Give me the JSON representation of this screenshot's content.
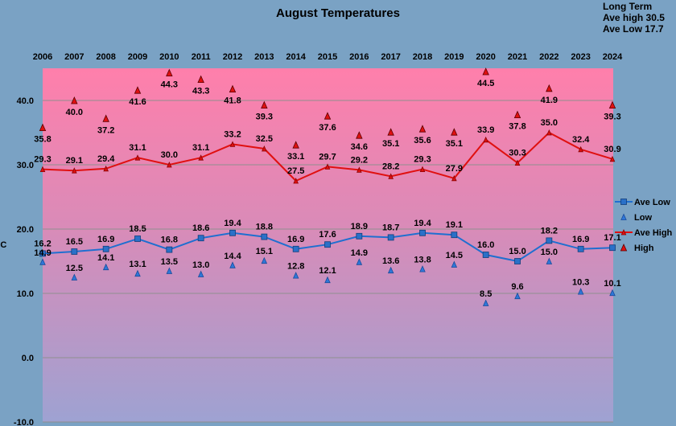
{
  "chart_data": {
    "type": "line",
    "title": "August Temperatures",
    "ylabel": "°C",
    "ylim": [
      -10,
      45
    ],
    "yticks": [
      "-10.0",
      "0.0",
      "10.0",
      "20.0",
      "30.0",
      "40.0"
    ],
    "grid": true,
    "legend_position": "right",
    "categories": [
      "2006",
      "2007",
      "2008",
      "2009",
      "2010",
      "2011",
      "2012",
      "2013",
      "2014",
      "2015",
      "2016",
      "2017",
      "2018",
      "2019",
      "2020",
      "2021",
      "2022",
      "2023",
      "2024"
    ],
    "series": [
      {
        "name": "Ave Low",
        "marker": "square",
        "line": true,
        "color": "#1f6fd0",
        "values": [
          16.2,
          16.5,
          16.9,
          18.5,
          16.8,
          18.6,
          19.4,
          18.8,
          16.9,
          17.6,
          18.9,
          18.7,
          19.4,
          19.1,
          16.0,
          15.0,
          18.2,
          16.9,
          17.1
        ]
      },
      {
        "name": "Low",
        "marker": "triangle",
        "line": false,
        "color": "#2a6fd6",
        "values": [
          14.9,
          12.5,
          14.1,
          13.1,
          13.5,
          13.0,
          14.4,
          15.1,
          12.8,
          12.1,
          14.9,
          13.6,
          13.8,
          14.5,
          8.5,
          9.6,
          15.0,
          10.3,
          10.1
        ]
      },
      {
        "name": "Ave High",
        "marker": "triangle",
        "line": true,
        "color": "#e01010",
        "values": [
          29.3,
          29.1,
          29.4,
          31.1,
          30.0,
          31.1,
          33.2,
          32.5,
          27.5,
          29.7,
          29.2,
          28.2,
          29.3,
          27.9,
          33.9,
          30.3,
          35.0,
          32.4,
          30.9
        ]
      },
      {
        "name": "High",
        "marker": "triangle",
        "line": false,
        "color": "#e01010",
        "values": [
          35.8,
          40.0,
          37.2,
          41.6,
          44.3,
          43.3,
          41.8,
          39.3,
          33.1,
          37.6,
          34.6,
          35.1,
          35.6,
          35.1,
          44.5,
          37.8,
          41.9,
          null,
          39.3
        ]
      }
    ],
    "annotation": [
      "Long Term",
      "Ave high  30.5",
      "Ave Low  17.7"
    ]
  },
  "colors": {
    "background": "#7aa2c4",
    "plot_top": "#ff80ac",
    "plot_bottom": "#9c9fd1",
    "gridline": "#8c8c8c"
  }
}
